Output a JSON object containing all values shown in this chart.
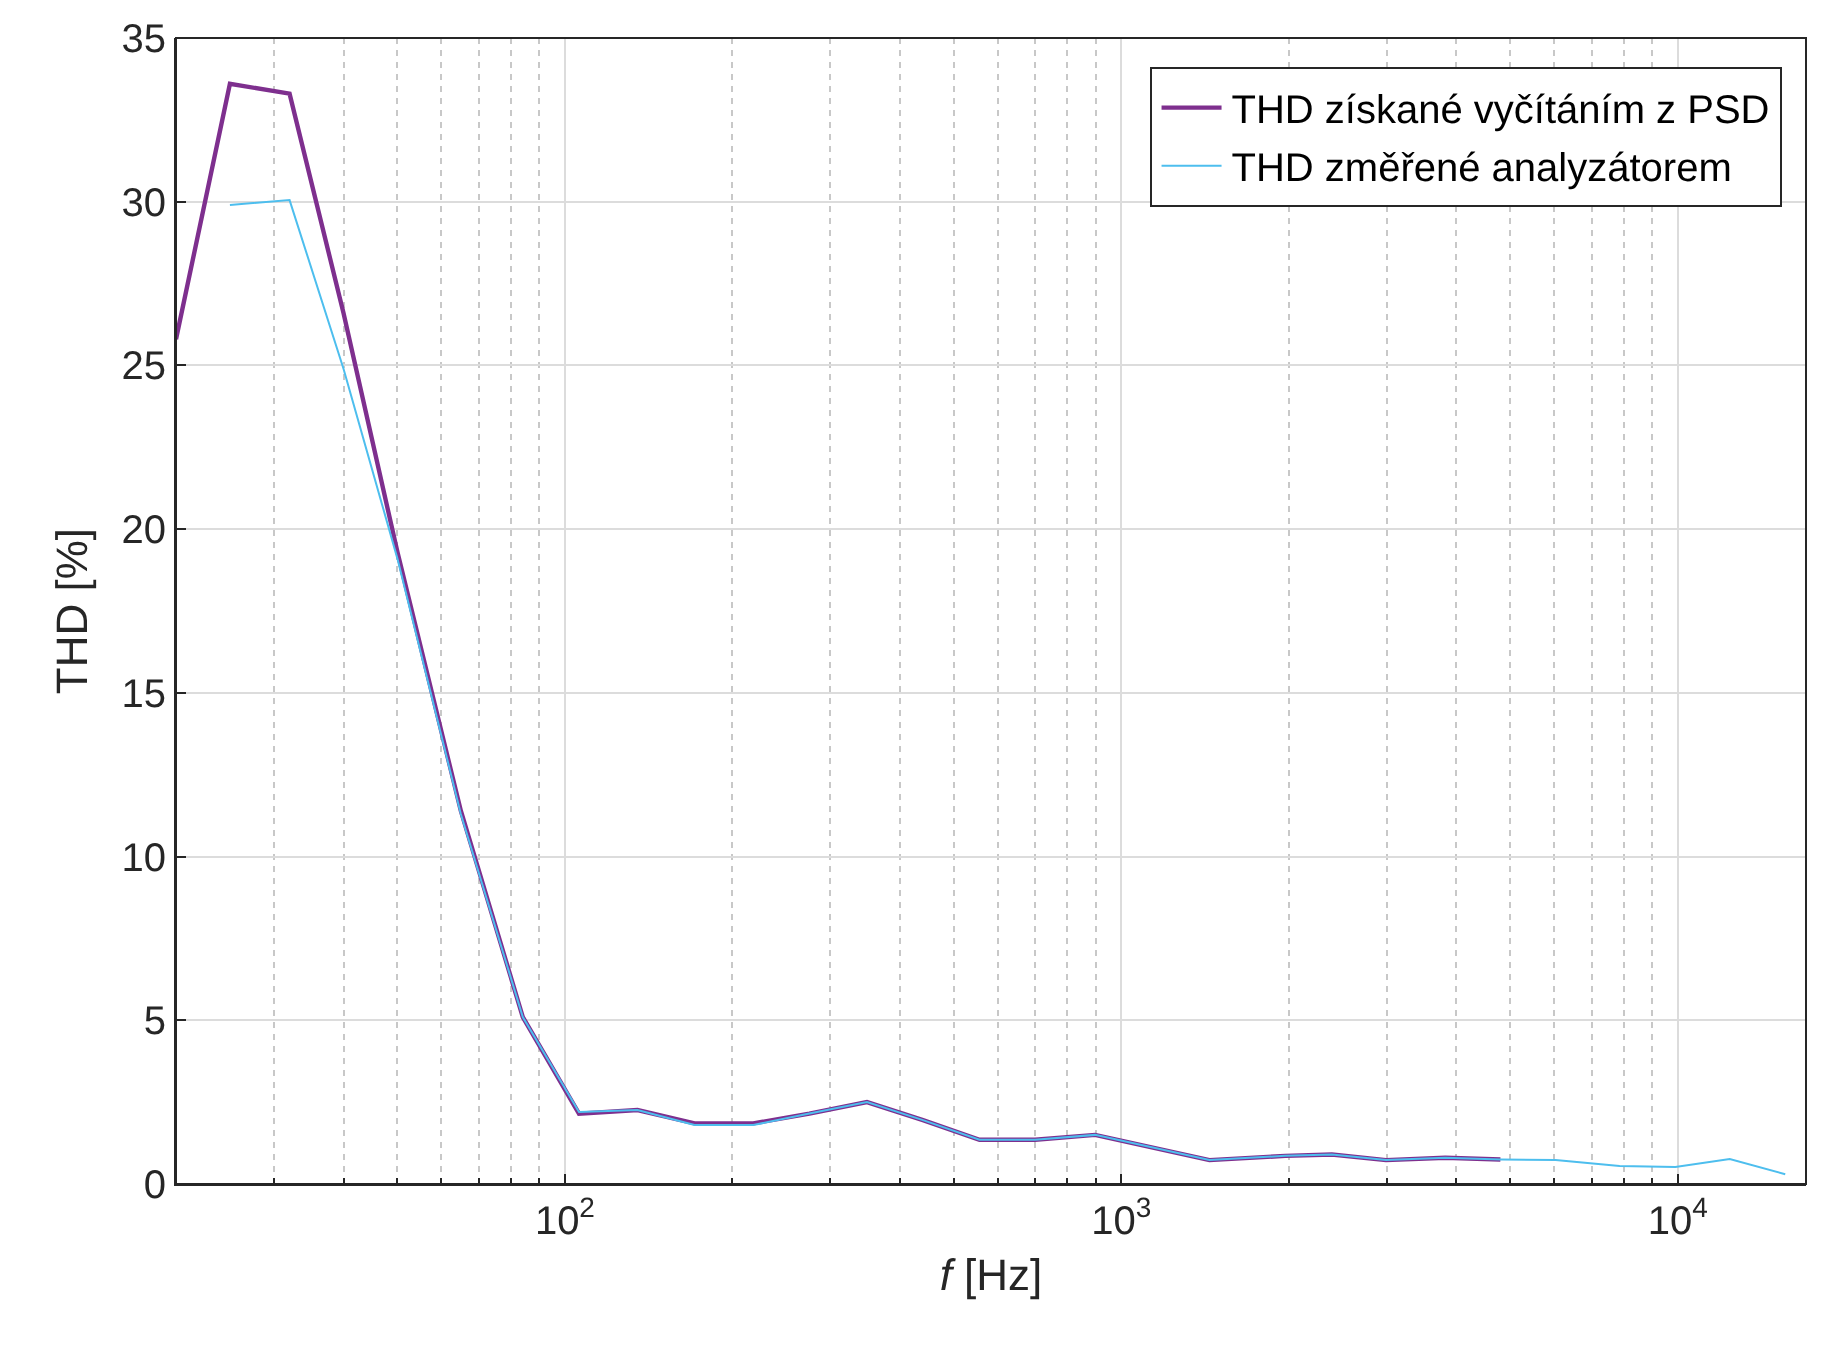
{
  "chart_data": {
    "type": "line",
    "xlabel": "f [Hz]",
    "ylabel": "THD [%]",
    "x": [
      20,
      25,
      32,
      40,
      50,
      65,
      84,
      106,
      135,
      171,
      218,
      275,
      349,
      440,
      556,
      700,
      897,
      1440,
      1970,
      2390,
      2990,
      3820,
      4800,
      6030,
      7860,
      9900,
      12400,
      15600
    ],
    "series": [
      {
        "name": "THD získané vyčítáním z PSD",
        "color": "#7e2f8e",
        "values": [
          25.8,
          33.6,
          33.3,
          26.6,
          19.3,
          11.4,
          5.1,
          2.15,
          2.26,
          1.85,
          1.85,
          2.15,
          2.5,
          1.95,
          1.35,
          1.35,
          1.5,
          0.73,
          0.86,
          0.9,
          0.73,
          0.8,
          0.75,
          null,
          null,
          null,
          null,
          null
        ]
      },
      {
        "name": "THD změřené analyzátorem",
        "color": "#4dbeee",
        "values": [
          null,
          29.9,
          30.05,
          24.9,
          19.1,
          11.3,
          5.1,
          2.2,
          2.26,
          1.8,
          1.8,
          2.15,
          2.5,
          1.95,
          1.35,
          1.35,
          1.5,
          0.73,
          0.86,
          0.9,
          0.73,
          0.8,
          0.75,
          0.73,
          0.55,
          0.52,
          0.76,
          0.3
        ]
      }
    ],
    "log": "x",
    "xlim": [
      20,
      17000
    ],
    "xticks": [
      {
        "value": 100,
        "label": "10$^{2}$"
      },
      {
        "value": 1000,
        "label": "10$^{3}$"
      },
      {
        "value": 10000,
        "label": "10$^{4}$"
      }
    ],
    "ylim": [
      0,
      35
    ],
    "yticks": [
      0,
      5,
      10,
      15,
      20,
      25,
      30,
      35
    ],
    "grid": true,
    "legend": "top right",
    "line_style": "solid",
    "marker": "none"
  }
}
